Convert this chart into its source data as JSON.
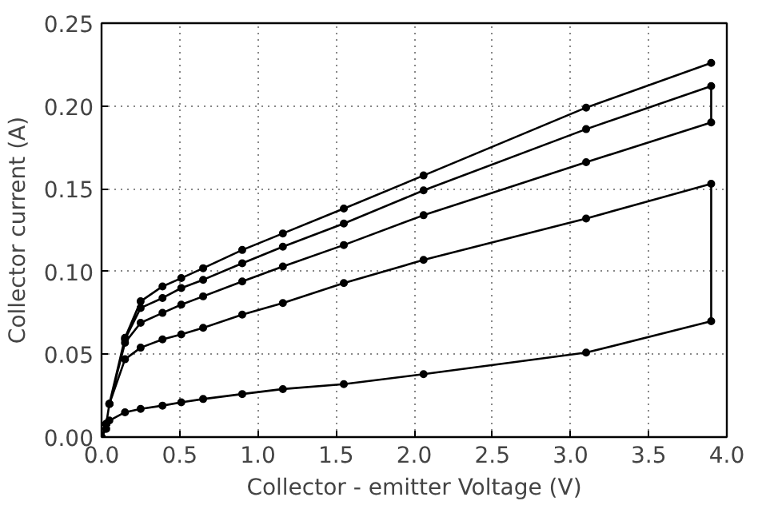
{
  "chart_data": {
    "type": "line",
    "xlabel": "Collector - emitter Voltage (V)",
    "ylabel": "Collector current (A)",
    "xlim": [
      0,
      4
    ],
    "ylim": [
      0,
      0.25
    ],
    "xticks": [
      {
        "value": 0,
        "label": "0.0"
      },
      {
        "value": 0.5,
        "label": "0.5"
      },
      {
        "value": 1,
        "label": "1.0"
      },
      {
        "value": 1.5,
        "label": "1.5"
      },
      {
        "value": 2,
        "label": "2.0"
      },
      {
        "value": 2.5,
        "label": "2.5"
      },
      {
        "value": 3,
        "label": "3.0"
      },
      {
        "value": 3.5,
        "label": "3.5"
      },
      {
        "value": 4,
        "label": "4.0"
      }
    ],
    "yticks": [
      {
        "value": 0,
        "label": "0.00"
      },
      {
        "value": 0.05,
        "label": "0.05"
      },
      {
        "value": 0.1,
        "label": "0.10"
      },
      {
        "value": 0.15,
        "label": "0.15"
      },
      {
        "value": 0.2,
        "label": "0.20"
      },
      {
        "value": 0.25,
        "label": "0.25"
      }
    ],
    "grid": true,
    "marker": "circle",
    "line_style": "solid",
    "series": [
      {
        "color": "#000000",
        "x": [
          0,
          0.03,
          0.05,
          0.15,
          0.25,
          0.39,
          0.51,
          0.65,
          0.9,
          1.16,
          1.55,
          2.06,
          3.1,
          3.9,
          3.9,
          3.1,
          2.06,
          1.55,
          1.16,
          0.9,
          0.65,
          0.51,
          0.39,
          0.25,
          0.15,
          0.05,
          0.03,
          0,
          0.03,
          0.05,
          0.15,
          0.25,
          0.39,
          0.51,
          0.65,
          0.9,
          1.16,
          1.55,
          2.06,
          3.1,
          3.9,
          3.9,
          3.1,
          2.06,
          1.55,
          1.16,
          0.9,
          0.65,
          0.51,
          0.39,
          0.25,
          0.15,
          0.05,
          0.03,
          0,
          0.03,
          0.05,
          0.15,
          0.25,
          0.39,
          0.51,
          0.65,
          0.9,
          1.16,
          1.55,
          2.06,
          3.1,
          3.9
        ],
        "values": [
          0,
          0.005,
          0.01,
          0.015,
          0.017,
          0.019,
          0.021,
          0.023,
          0.026,
          0.029,
          0.032,
          0.038,
          0.051,
          0.07,
          0.153,
          0.132,
          0.107,
          0.093,
          0.081,
          0.074,
          0.066,
          0.062,
          0.059,
          0.054,
          0.047,
          0.02,
          0.008,
          0,
          0.008,
          0.02,
          0.057,
          0.069,
          0.075,
          0.08,
          0.085,
          0.094,
          0.103,
          0.116,
          0.134,
          0.166,
          0.19,
          0.212,
          0.186,
          0.149,
          0.129,
          0.115,
          0.105,
          0.095,
          0.09,
          0.084,
          0.078,
          0.059,
          0.02,
          0.008,
          0,
          0.008,
          0.02,
          0.06,
          0.082,
          0.091,
          0.096,
          0.102,
          0.113,
          0.123,
          0.138,
          0.158,
          0.199,
          0.226
        ]
      }
    ]
  }
}
